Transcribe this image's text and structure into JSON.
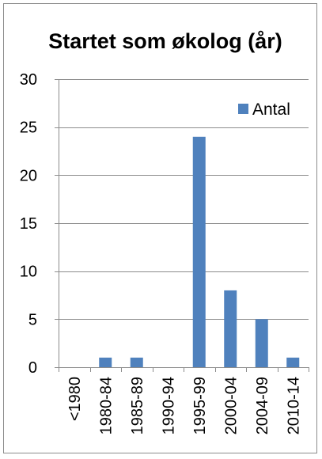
{
  "chart_data": {
    "type": "bar",
    "title": "Startet som økolog (år)",
    "xlabel": "",
    "ylabel": "",
    "categories": [
      "<1980",
      "1980-84",
      "1985-89",
      "1990-94",
      "1995-99",
      "2000-04",
      "2004-09",
      "2010-14"
    ],
    "series": [
      {
        "name": "Antal",
        "color": "#4f81bd",
        "values": [
          0,
          1,
          1,
          0,
          24,
          8,
          5,
          1
        ]
      }
    ],
    "ylim": [
      0,
      30
    ],
    "yticks": [
      0,
      5,
      10,
      15,
      20,
      25,
      30
    ],
    "grid": true,
    "legend_position": "top-right"
  }
}
